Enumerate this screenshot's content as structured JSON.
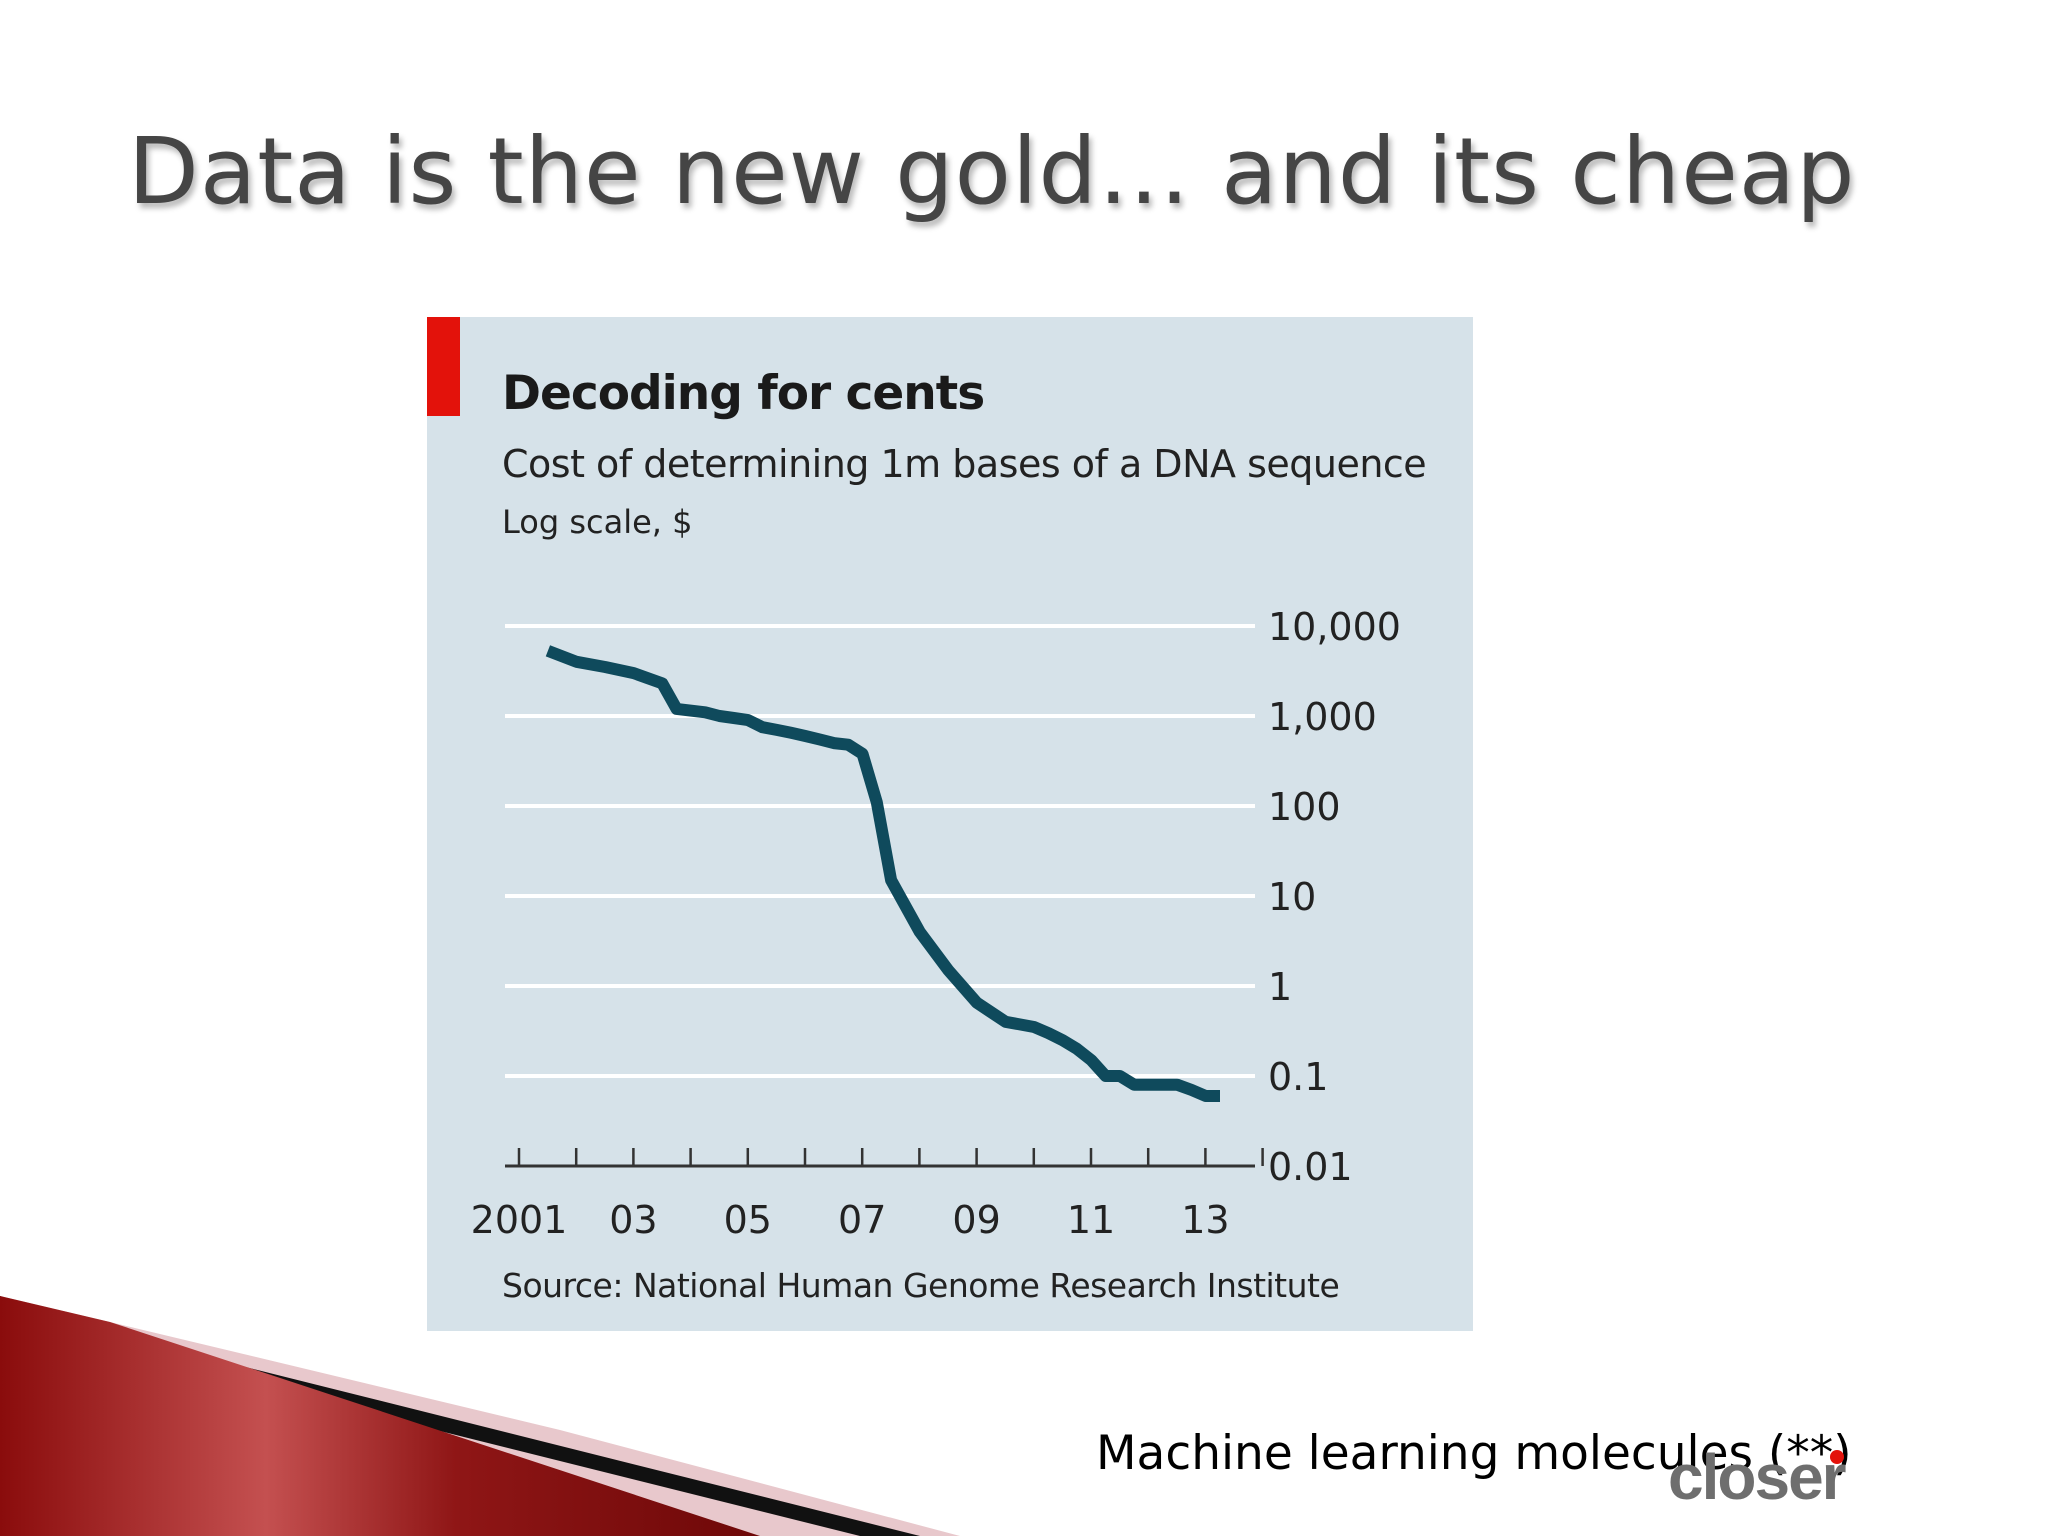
{
  "slide": {
    "title": "Data is the new gold… and its cheap",
    "footer_text": "Machine learning molecules (**)",
    "logo_text": "closer"
  },
  "colors": {
    "panel_background": "#d6e2e9",
    "line": "#0f4a5c",
    "accent_tag": "#e3120b",
    "gridline": "#ffffff"
  },
  "chart_data": {
    "type": "line",
    "title": "Decoding for cents",
    "subtitle": "Cost of determining 1m bases of a DNA sequence",
    "ylabel": "Log scale, $",
    "source": "Source: National Human Genome Research Institute",
    "y_scale": "log",
    "ylim": [
      0.01,
      10000
    ],
    "y_ticks": [
      {
        "value": 10000,
        "label": "10,000"
      },
      {
        "value": 1000,
        "label": "1,000"
      },
      {
        "value": 100,
        "label": "100"
      },
      {
        "value": 10,
        "label": "10"
      },
      {
        "value": 1,
        "label": "1"
      },
      {
        "value": 0.1,
        "label": "0.1"
      },
      {
        "value": 0.01,
        "label": "0.01"
      }
    ],
    "xlim": [
      2001,
      2014.2
    ],
    "x_ticks": [
      2001,
      2002,
      2003,
      2004,
      2005,
      2006,
      2007,
      2008,
      2009,
      2010,
      2011,
      2012,
      2013,
      2014
    ],
    "x_tick_labels": [
      {
        "value": 2001,
        "label": "2001"
      },
      {
        "value": 2003,
        "label": "03"
      },
      {
        "value": 2005,
        "label": "05"
      },
      {
        "value": 2007,
        "label": "07"
      },
      {
        "value": 2009,
        "label": "09"
      },
      {
        "value": 2011,
        "label": "11"
      },
      {
        "value": 2013,
        "label": "13"
      }
    ],
    "grid": true,
    "legend": "none",
    "series": [
      {
        "x": [
          2001.75,
          2002.25,
          2002.75,
          2003.25,
          2003.75,
          2004.0,
          2004.5,
          2004.75,
          2005.0,
          2005.25,
          2005.5,
          2005.75,
          2006.0,
          2006.25,
          2006.5,
          2006.75,
          2007.0,
          2007.25,
          2007.5,
          2007.75,
          2008.25,
          2008.75,
          2009.25,
          2009.75,
          2010.25,
          2010.5,
          2010.75,
          2011.0,
          2011.25,
          2011.5,
          2011.75,
          2012.0,
          2012.25,
          2012.5,
          2012.75,
          2013.0,
          2013.25,
          2013.5
        ],
        "y": [
          5300,
          4000,
          3500,
          3000,
          2300,
          1200,
          1100,
          1000,
          950,
          900,
          750,
          700,
          650,
          600,
          550,
          500,
          480,
          380,
          110,
          15,
          4,
          1.5,
          0.65,
          0.4,
          0.35,
          0.3,
          0.25,
          0.2,
          0.15,
          0.1,
          0.1,
          0.08,
          0.08,
          0.08,
          0.08,
          0.07,
          0.06,
          0.06
        ]
      }
    ]
  }
}
